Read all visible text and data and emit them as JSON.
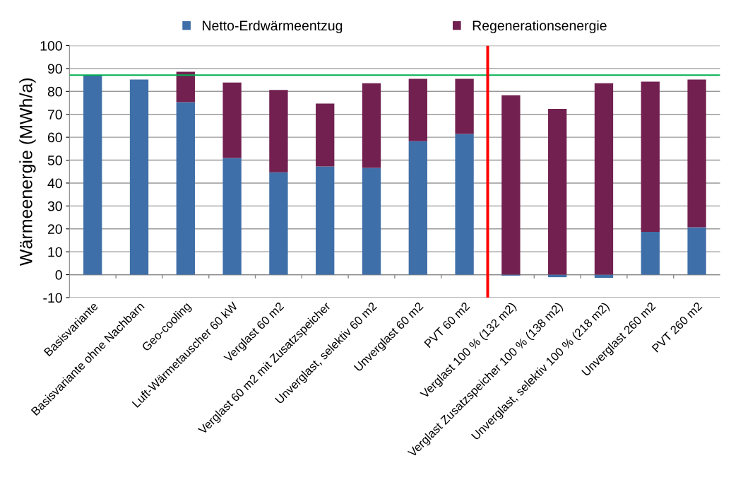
{
  "chart_data": {
    "type": "bar",
    "stacked": true,
    "ylabel": "Wärmeenergie (MWh/a)",
    "categories": [
      "Basisvariante",
      "Basisvariante ohne Nachbarn",
      "Geo-cooling",
      "Luft-Wärmetauscher 60 kW",
      "Verglast 60 m2",
      "Verglast 60 m2 mit Zusatzspeicher",
      "Unverglast, selektiv 60 m2",
      "Unverglast 60 m2",
      "PVT 60 m2",
      "Verglast 100 % (132 m2)",
      "Verglast Zusatzspeicher 100 % (138 m2)",
      "Unverglast, selektiv 100 % (218 m2)",
      "Unverglast 260 m2",
      "PVT 260 m2"
    ],
    "series": [
      {
        "name": "Netto-Erdwärmeentzug",
        "color": "#3f6fa8",
        "values": [
          87.1,
          85.2,
          75.3,
          50.9,
          44.7,
          47.2,
          46.6,
          58.3,
          61.4,
          -0.4,
          -1.1,
          -1.4,
          18.7,
          20.7
        ]
      },
      {
        "name": "Regenerationsenergie",
        "color": "#722050",
        "values": [
          0,
          0,
          13.3,
          33.0,
          35.9,
          27.5,
          37.0,
          27.2,
          24.1,
          78.3,
          72.4,
          83.6,
          65.6,
          64.5
        ]
      }
    ],
    "ylim": [
      -10,
      100
    ],
    "yticks": [
      -10,
      0,
      10,
      20,
      30,
      40,
      50,
      60,
      70,
      80,
      90,
      100
    ],
    "ref_lines": [
      {
        "axis": "y",
        "value": 87.1,
        "color": "#00b050"
      }
    ],
    "grid": "y",
    "legend": "top"
  }
}
